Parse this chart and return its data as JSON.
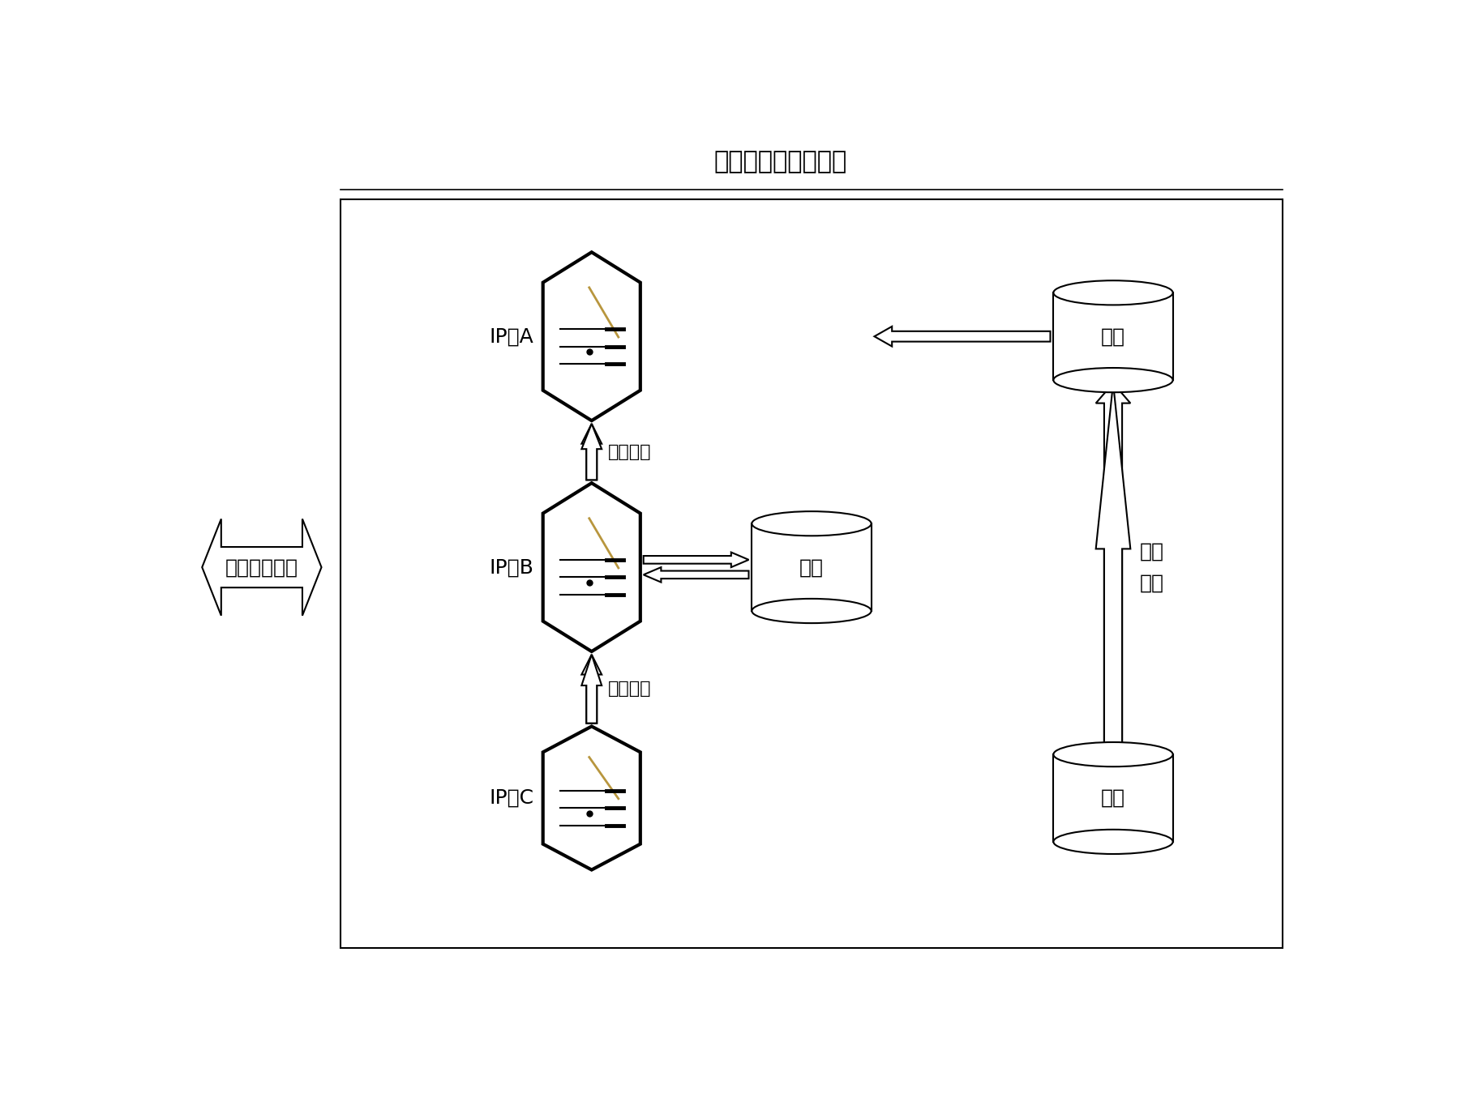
{
  "title": "分布式存储管理软件",
  "title_fontsize": 22,
  "background_color": "#ffffff",
  "text_color": "#000000",
  "server_A_label": "IP：A",
  "server_B_label": "IP：B",
  "server_C_label": "IP：C",
  "msg_queue_label1": "消息队列",
  "msg_queue_label2": "消息队列",
  "data_label1": "数据",
  "data_label2": "数据",
  "data_label3": "数据",
  "user_task_label": "用户操作任务",
  "sync_label": "数据\n同步",
  "font_size": 18,
  "small_font": 16
}
